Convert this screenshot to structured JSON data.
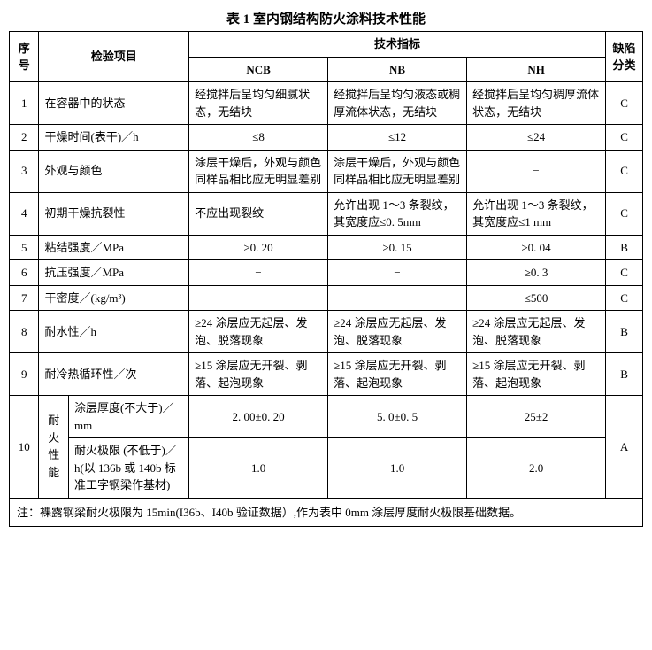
{
  "title": "表 1  室内钢结构防火涂料技术性能",
  "headers": {
    "seq": "序号",
    "project": "检验项目",
    "indicator": "技术指标",
    "ncb": "NCB",
    "nb": "NB",
    "nh": "NH",
    "defect": "缺陷分类"
  },
  "rows": {
    "r1": {
      "seq": "1",
      "project": "在容器中的状态",
      "ncb": "经搅拌后呈均匀细腻状态，无结块",
      "nb": "经搅拌后呈均匀液态或稠厚流体状态，无结块",
      "nh": "经搅拌后呈均匀稠厚流体状态，无结块",
      "defect": "C"
    },
    "r2": {
      "seq": "2",
      "project": "干燥时间(表干)／h",
      "ncb": "≤8",
      "nb": "≤12",
      "nh": "≤24",
      "defect": "C"
    },
    "r3": {
      "seq": "3",
      "project": "外观与颜色",
      "ncb": "涂层干燥后，外观与颜色同样品相比应无明显差别",
      "nb": "涂层干燥后，外观与颜色同样品相比应无明显差别",
      "nh": "−",
      "defect": "C"
    },
    "r4": {
      "seq": "4",
      "project": "初期干燥抗裂性",
      "ncb": "不应出现裂纹",
      "nb": "允许出现 1～3 条裂纹，其宽度应≤0. 5mm",
      "nh": "允许出现 1～3 条裂纹，其宽度应≤1 mm",
      "defect": "C"
    },
    "r5": {
      "seq": "5",
      "project": "粘结强度／MPa",
      "ncb": "≥0. 20",
      "nb": "≥0. 15",
      "nh": "≥0. 04",
      "defect": "B"
    },
    "r6": {
      "seq": "6",
      "project": "抗压强度／MPa",
      "ncb": "−",
      "nb": "−",
      "nh": "≥0. 3",
      "defect": "C"
    },
    "r7": {
      "seq": "7",
      "project": "干密度／(kg/m³)",
      "ncb": "−",
      "nb": "−",
      "nh": "≤500",
      "defect": "C"
    },
    "r8": {
      "seq": "8",
      "project": "耐水性／h",
      "ncb": "≥24 涂层应无起层、发泡、脱落现象",
      "nb": "≥24 涂层应无起层、发泡、脱落现象",
      "nh": "≥24 涂层应无起层、发泡、脱落现象",
      "defect": "B"
    },
    "r9": {
      "seq": "9",
      "project": "耐冷热循环性／次",
      "ncb": "≥15 涂层应无开裂、剥落、起泡现象",
      "nb": "≥15 涂层应无开裂、剥落、起泡现象",
      "nh": "≥15 涂层应无开裂、剥落、起泡现象",
      "defect": "B"
    },
    "r10": {
      "seq": "10",
      "group": "耐火性能",
      "sub1": "涂层厚度(不大于)／mm",
      "ncb1": "2. 00±0. 20",
      "nb1": "5. 0±0. 5",
      "nh1": "25±2",
      "sub2": "耐火极限 (不低于)／h(以 136b 或 140b 标准工字钢梁作基材)",
      "ncb2": "1.0",
      "nb2": "1.0",
      "nh2": "2.0",
      "defect": "A"
    }
  },
  "note": "注：裸露钢梁耐火极限为 15min(I36b、I40b 验证数据）,作为表中 0mm 涂层厚度耐火极限基础数据。"
}
